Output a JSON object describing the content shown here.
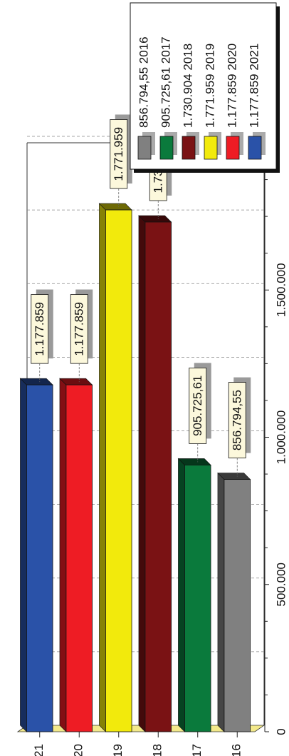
{
  "chart_data": {
    "type": "bar",
    "orientation": "horizontal",
    "rotated_page": "counter-clockwise-90",
    "categories": [
      "2016",
      "2017",
      "2018",
      "2019",
      "2020",
      "2021"
    ],
    "values": [
      856794.55,
      905725.61,
      1730904,
      1771959,
      1177859,
      1177859
    ],
    "value_labels": [
      "856.794,55",
      "905.725,61",
      "1.730.904",
      "1.771.959",
      "1.177.859",
      "1.177.859"
    ],
    "colors": [
      "#808080",
      "#0a7a3c",
      "#7a1214",
      "#f2ea0c",
      "#ee1c24",
      "#2a52a8"
    ],
    "ylim": [
      0,
      2000000
    ],
    "y_ticks": [
      {
        "value": 0,
        "label": "0"
      },
      {
        "value": 500000,
        "label": "500.000"
      },
      {
        "value": 1000000,
        "label": "1.000.000"
      },
      {
        "value": 1500000,
        "label": "1.500.000"
      }
    ],
    "legend": {
      "placement": "top-right",
      "entries": [
        "856.794,55 2016",
        "905.725,61 2017",
        "1.730.904 2018",
        "1.771.959 2019",
        "1.177.859 2020",
        "1.177.859 2021"
      ]
    },
    "grid": true,
    "title": "",
    "xlabel": "",
    "ylabel": ""
  }
}
